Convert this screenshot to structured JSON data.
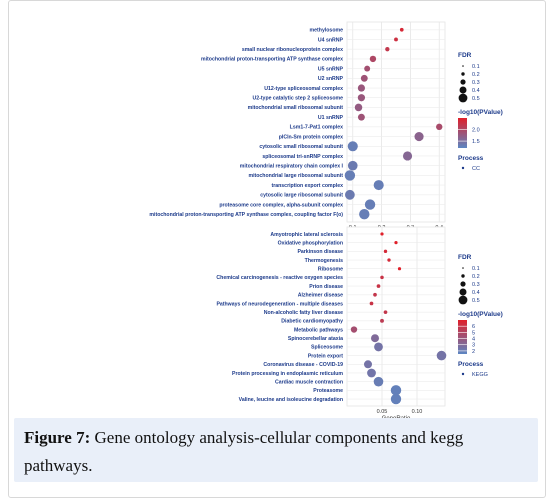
{
  "caption": {
    "label": "Figure 7:",
    "text": "Gene ontology analysis-cellular components and kegg pathways."
  },
  "chart_data": [
    {
      "type": "scatter",
      "panel": "top",
      "xlabel": "",
      "ylabel": "",
      "xlim": [
        0.08,
        0.42
      ],
      "xticks": [
        0.1,
        0.2,
        0.3,
        0.4
      ],
      "xtick_labels": [
        "0.1",
        "0.2",
        "0.3",
        "0.4"
      ],
      "grid": true,
      "categories": [
        "methylosome",
        "U4 snRNP",
        "small nuclear ribonucleoprotein complex",
        "mitochondrial proton-transporting ATP synthase complex",
        "U5 snRNP",
        "U2 snRNP",
        "U12-type spliceosomal complex",
        "U2-type catalytic step 2 spliceosome",
        "mitochondrial small ribosomal subunit",
        "U1 snRNP",
        "Lsm1-7-Pat1 complex",
        "pICln-Sm protein complex",
        "cytosolic small ribosomal subunit",
        "spliceosomal tri-snRNP complex",
        "mitochondrial respiratory chain complex I",
        "mitochondrial large ribosomal subunit",
        "transcription export complex",
        "cytosolic large ribosomal subunit",
        "proteasome core complex, alpha-subunit complex",
        "mitochondrial proton-transporting ATP synthase complex, coupling factor F(o)"
      ],
      "gene_ratio": [
        0.27,
        0.25,
        0.22,
        0.17,
        0.15,
        0.14,
        0.13,
        0.13,
        0.12,
        0.13,
        0.4,
        0.33,
        0.1,
        0.29,
        0.1,
        0.09,
        0.19,
        0.09,
        0.16,
        0.14
      ],
      "fdr": [
        0.08,
        0.09,
        0.12,
        0.25,
        0.22,
        0.28,
        0.3,
        0.3,
        0.32,
        0.28,
        0.25,
        0.42,
        0.48,
        0.42,
        0.45,
        0.5,
        0.48,
        0.46,
        0.5,
        0.5
      ],
      "neg_log10_pvalue": [
        2.4,
        2.3,
        2.2,
        2.0,
        1.9,
        1.85,
        1.8,
        1.8,
        1.75,
        1.85,
        1.95,
        1.65,
        1.3,
        1.6,
        1.35,
        1.3,
        1.3,
        1.35,
        1.3,
        1.3
      ],
      "legend": {
        "size_title": "FDR",
        "size_levels": [
          "0.1",
          "0.2",
          "0.3",
          "0.4",
          "0.5"
        ],
        "color_title": "-log10(PValue)",
        "color_ticks": [
          "2.0",
          "1.5"
        ],
        "color_tick_values": [
          2.0,
          1.5
        ],
        "color_range": [
          1.2,
          2.5
        ],
        "process_title": "Process",
        "process_label": "CC"
      },
      "colors": {
        "low": "#5c86c2",
        "high": "#e0202a"
      }
    },
    {
      "type": "scatter",
      "panel": "bottom",
      "xlabel": "GeneRatio",
      "ylabel": "",
      "xlim": [
        0.0,
        0.14
      ],
      "xticks": [
        0.05,
        0.1
      ],
      "xtick_labels": [
        "0.05",
        "0.10"
      ],
      "grid": true,
      "categories": [
        "Amyotrophic lateral sclerosis",
        "Oxidative phosphorylation",
        "Parkinson disease",
        "Thermogenesis",
        "Ribosome",
        "Chemical carcinogenesis - reactive oxygen species",
        "Prion disease",
        "Alzheimer disease",
        "Pathways of neurodegeneration - multiple diseases",
        "Non-alcoholic fatty liver disease",
        "Diabetic cardiomyopathy",
        "Metabolic pathways",
        "Spinocerebellar ataxia",
        "Spliceosome",
        "Protein export",
        "Coronavirus disease - COVID-19",
        "Protein processing in endoplasmic reticulum",
        "Cardiac muscle contraction",
        "Proteasome",
        "Valine, leucine and isoleucine degradation"
      ],
      "gene_ratio": [
        0.05,
        0.07,
        0.055,
        0.06,
        0.075,
        0.05,
        0.045,
        0.04,
        0.035,
        0.055,
        0.05,
        0.01,
        0.04,
        0.045,
        0.135,
        0.03,
        0.035,
        0.045,
        0.07,
        0.07
      ],
      "fdr": [
        0.05,
        0.05,
        0.06,
        0.06,
        0.05,
        0.07,
        0.08,
        0.08,
        0.08,
        0.08,
        0.09,
        0.25,
        0.35,
        0.4,
        0.45,
        0.35,
        0.4,
        0.45,
        0.5,
        0.5
      ],
      "neg_log10_pvalue": [
        7.0,
        7.0,
        6.5,
        6.5,
        7.0,
        6.0,
        6.0,
        5.8,
        6.0,
        5.8,
        5.5,
        4.5,
        3.0,
        2.5,
        2.5,
        2.5,
        2.4,
        2.0,
        1.8,
        1.8
      ],
      "legend": {
        "size_title": "FDR",
        "size_levels": [
          "0.1",
          "0.2",
          "0.3",
          "0.4",
          "0.5"
        ],
        "color_title": "-log10(PValue)",
        "color_ticks": [
          "6",
          "5",
          "4",
          "3",
          "2"
        ],
        "color_tick_values": [
          6,
          5,
          4,
          3,
          2
        ],
        "color_range": [
          1.5,
          7.0
        ],
        "process_title": "Process",
        "process_label": "KEGG"
      },
      "colors": {
        "low": "#5c86c2",
        "high": "#e0202a"
      }
    }
  ]
}
